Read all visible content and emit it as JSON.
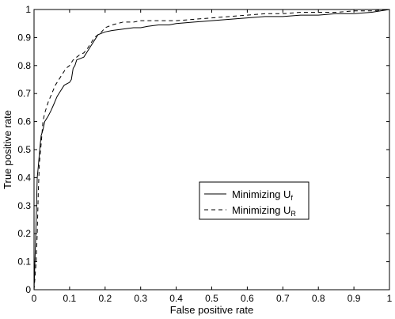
{
  "chart_data": {
    "type": "line",
    "title": "",
    "xlabel": "False positive rate",
    "ylabel": "True positive rate",
    "xlim": [
      0,
      1
    ],
    "ylim": [
      0,
      1
    ],
    "xticks": [
      "0",
      "0.1",
      "0.2",
      "0.3",
      "0.4",
      "0.5",
      "0.6",
      "0.7",
      "0.8",
      "0.9",
      "1"
    ],
    "yticks": [
      "0",
      "0.1",
      "0.2",
      "0.3",
      "0.4",
      "0.5",
      "0.6",
      "0.7",
      "0.8",
      "0.9",
      "1"
    ],
    "grid": false,
    "legend": {
      "placement": "center-right",
      "entries": [
        {
          "base": "Minimizing U",
          "sub": "f",
          "style": "solid"
        },
        {
          "base": "Minimizing U",
          "sub": "R",
          "style": "dashed"
        }
      ]
    },
    "series": [
      {
        "style": "solid",
        "x": [
          0,
          0.003,
          0.006,
          0.009,
          0.012,
          0.016,
          0.02,
          0.025,
          0.03,
          0.035,
          0.04,
          0.048,
          0.055,
          0.065,
          0.075,
          0.085,
          0.1,
          0.105,
          0.11,
          0.115,
          0.12,
          0.13,
          0.14,
          0.15,
          0.16,
          0.17,
          0.18,
          0.19,
          0.2,
          0.22,
          0.25,
          0.28,
          0.3,
          0.32,
          0.35,
          0.38,
          0.4,
          0.45,
          0.5,
          0.55,
          0.6,
          0.65,
          0.7,
          0.75,
          0.8,
          0.85,
          0.9,
          0.95,
          1.0
        ],
        "y": [
          0,
          0.12,
          0.25,
          0.4,
          0.44,
          0.5,
          0.55,
          0.57,
          0.6,
          0.61,
          0.62,
          0.64,
          0.66,
          0.69,
          0.71,
          0.73,
          0.74,
          0.75,
          0.79,
          0.8,
          0.82,
          0.825,
          0.83,
          0.85,
          0.87,
          0.89,
          0.91,
          0.915,
          0.92,
          0.925,
          0.93,
          0.935,
          0.935,
          0.94,
          0.945,
          0.945,
          0.95,
          0.955,
          0.96,
          0.965,
          0.97,
          0.975,
          0.975,
          0.98,
          0.98,
          0.985,
          0.985,
          0.99,
          1.0
        ]
      },
      {
        "style": "dashed",
        "x": [
          0,
          0.003,
          0.006,
          0.009,
          0.012,
          0.015,
          0.02,
          0.025,
          0.03,
          0.035,
          0.04,
          0.05,
          0.06,
          0.07,
          0.08,
          0.09,
          0.1,
          0.11,
          0.12,
          0.13,
          0.14,
          0.15,
          0.16,
          0.17,
          0.18,
          0.19,
          0.2,
          0.22,
          0.25,
          0.28,
          0.3,
          0.35,
          0.4,
          0.45,
          0.5,
          0.55,
          0.6,
          0.65,
          0.7,
          0.75,
          0.8,
          0.85,
          0.9,
          0.95,
          1.0
        ],
        "y": [
          0,
          0.05,
          0.1,
          0.2,
          0.35,
          0.45,
          0.52,
          0.6,
          0.63,
          0.65,
          0.67,
          0.7,
          0.73,
          0.75,
          0.77,
          0.79,
          0.8,
          0.82,
          0.83,
          0.84,
          0.845,
          0.86,
          0.88,
          0.9,
          0.91,
          0.92,
          0.935,
          0.945,
          0.955,
          0.955,
          0.96,
          0.96,
          0.96,
          0.965,
          0.97,
          0.975,
          0.98,
          0.985,
          0.985,
          0.99,
          0.99,
          0.99,
          0.995,
          0.995,
          1.0
        ]
      }
    ]
  },
  "colors": {
    "line": "#000000",
    "background": "#ffffff"
  }
}
